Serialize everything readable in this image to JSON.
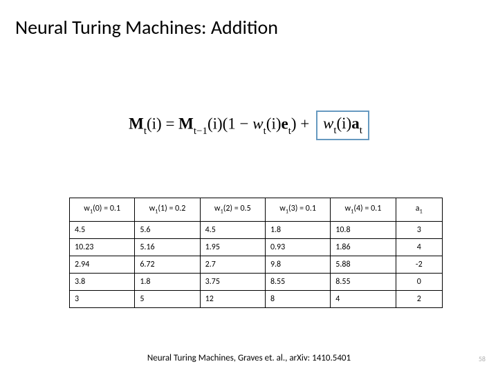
{
  "title": "Neural Turing Machines: Addition",
  "formula": {
    "lhs_bold": "M",
    "lhs_sub": "t",
    "lhs_arg": "(i)",
    "eq": " = ",
    "term1_bold": "M",
    "term1_sub": "t−1",
    "term1_arg": "(i)(1 − ",
    "w1": "w",
    "w1_sub": "t",
    "w1_arg": "(i)",
    "e_bold": "e",
    "e_sub": "t",
    "close1": ") + ",
    "box_w": "w",
    "box_w_sub": "t",
    "box_w_arg": "(i)",
    "box_a_bold": "a",
    "box_a_sub": "t"
  },
  "table": {
    "headers": [
      {
        "name": "w",
        "sub": "1",
        "arg": "(0) = 0.1"
      },
      {
        "name": "w",
        "sub": "1",
        "arg": "(1) = 0.2"
      },
      {
        "name": "w",
        "sub": "1",
        "arg": "(2) = 0.5"
      },
      {
        "name": "w",
        "sub": "1",
        "arg": "(3) = 0.1"
      },
      {
        "name": "w",
        "sub": "1",
        "arg": "(4) = 0.1"
      },
      {
        "name": "a",
        "sub": "1",
        "arg": ""
      }
    ],
    "rows": [
      [
        "4.5",
        "5.6",
        "4.5",
        "1.8",
        "10.8",
        "3"
      ],
      [
        "10.23",
        "5.16",
        "1.95",
        "0.93",
        "1.86",
        "4"
      ],
      [
        "2.94",
        "6.72",
        "2.7",
        "9.8",
        "5.88",
        "-2"
      ],
      [
        "3.8",
        "1.8",
        "3.75",
        "8.55",
        "8.55",
        "0"
      ],
      [
        "3",
        "5",
        "12",
        "8",
        "4",
        "2"
      ]
    ],
    "col_widths": [
      "17.5%",
      "17.5%",
      "17.5%",
      "17.5%",
      "17.5%",
      "12.5%"
    ]
  },
  "footer": "Neural Turing Machines, Graves et. al., arXiv: 1410.5401",
  "pagenum": "58",
  "colors": {
    "box_border": "#6699c0",
    "pagenum": "#b0b0b0"
  }
}
